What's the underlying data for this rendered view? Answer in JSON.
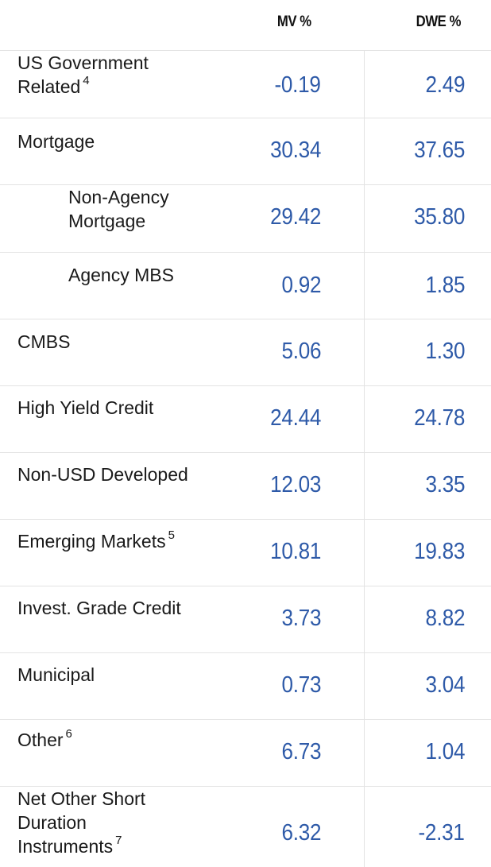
{
  "header": {
    "col_mv": "MV %",
    "col_dwe": "DWE %"
  },
  "rows": [
    {
      "label_lines": [
        "US Government",
        "Related"
      ],
      "sup": "4",
      "mv": "-0.19",
      "dwe": "2.49",
      "indent": false
    },
    {
      "label_lines": [
        "Mortgage"
      ],
      "sup": "",
      "mv": "30.34",
      "dwe": "37.65",
      "indent": false
    },
    {
      "label_lines": [
        "Non-Agency",
        "Mortgage"
      ],
      "sup": "",
      "mv": "29.42",
      "dwe": "35.80",
      "indent": true
    },
    {
      "label_lines": [
        "Agency MBS"
      ],
      "sup": "",
      "mv": "0.92",
      "dwe": "1.85",
      "indent": true
    },
    {
      "label_lines": [
        "CMBS"
      ],
      "sup": "",
      "mv": "5.06",
      "dwe": "1.30",
      "indent": false
    },
    {
      "label_lines": [
        "High Yield Credit"
      ],
      "sup": "",
      "mv": "24.44",
      "dwe": "24.78",
      "indent": false
    },
    {
      "label_lines": [
        "Non-USD Developed"
      ],
      "sup": "",
      "mv": "12.03",
      "dwe": "3.35",
      "indent": false
    },
    {
      "label_lines": [
        "Emerging Markets"
      ],
      "sup": "5",
      "mv": "10.81",
      "dwe": "19.83",
      "indent": false
    },
    {
      "label_lines": [
        "Invest. Grade Credit"
      ],
      "sup": "",
      "mv": "3.73",
      "dwe": "8.82",
      "indent": false
    },
    {
      "label_lines": [
        "Municipal"
      ],
      "sup": "",
      "mv": "0.73",
      "dwe": "3.04",
      "indent": false
    },
    {
      "label_lines": [
        "Other"
      ],
      "sup": "6",
      "mv": "6.73",
      "dwe": "1.04",
      "indent": false
    },
    {
      "label_lines": [
        "Net Other Short",
        "Duration",
        "Instruments"
      ],
      "sup": "7",
      "mv": "6.32",
      "dwe": "-2.31",
      "indent": false
    }
  ],
  "colors": {
    "value_text": "#2e5aa8",
    "label_text": "#1a1a1a",
    "grid_line": "#e3e3e3"
  }
}
